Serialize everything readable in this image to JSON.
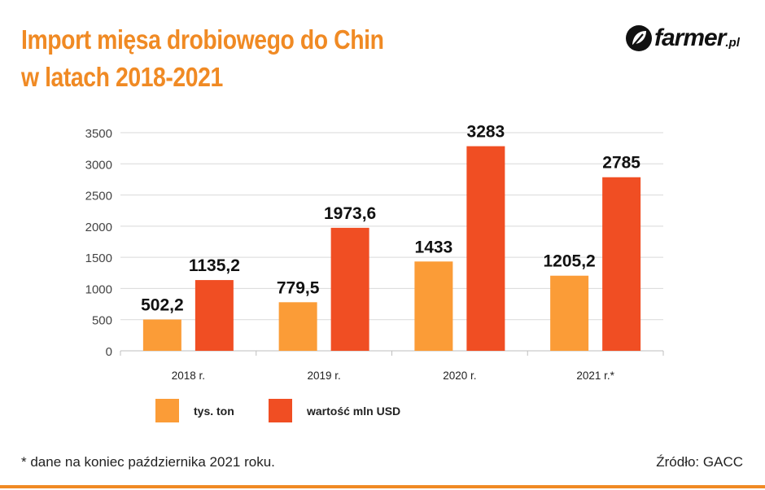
{
  "title_lines": [
    "Import mięsa drobiowego do Chin",
    "w latach 2018-2021"
  ],
  "logo": {
    "text": "farmer",
    "suffix": ".pl",
    "icon": "leaf-icon"
  },
  "footnote": "* dane na koniec października 2021 roku.",
  "source": "Źródło: GACC",
  "colors": {
    "accent": "#f08a24",
    "series1": "#fb9c37",
    "series2": "#f04e23"
  },
  "chart_data": {
    "type": "bar",
    "categories": [
      "2018 r.",
      "2019 r.",
      "2020 r.",
      "2021 r.*"
    ],
    "series": [
      {
        "name": "tys. ton",
        "values": [
          502.2,
          779.5,
          1433,
          1205.2
        ],
        "labels": [
          "502,2",
          "779,5",
          "1433",
          "1205,2"
        ],
        "color": "#fb9c37"
      },
      {
        "name": "wartość mln USD",
        "values": [
          1135.2,
          1973.6,
          3283,
          2785
        ],
        "labels": [
          "1135,2",
          "1973,6",
          "3283",
          "2785"
        ],
        "color": "#f04e23"
      }
    ],
    "ylim": [
      0,
      3500
    ],
    "yticks": [
      0,
      500,
      1000,
      1500,
      2000,
      2500,
      3000,
      3500
    ],
    "grid": true,
    "legend_position": "bottom-left"
  }
}
